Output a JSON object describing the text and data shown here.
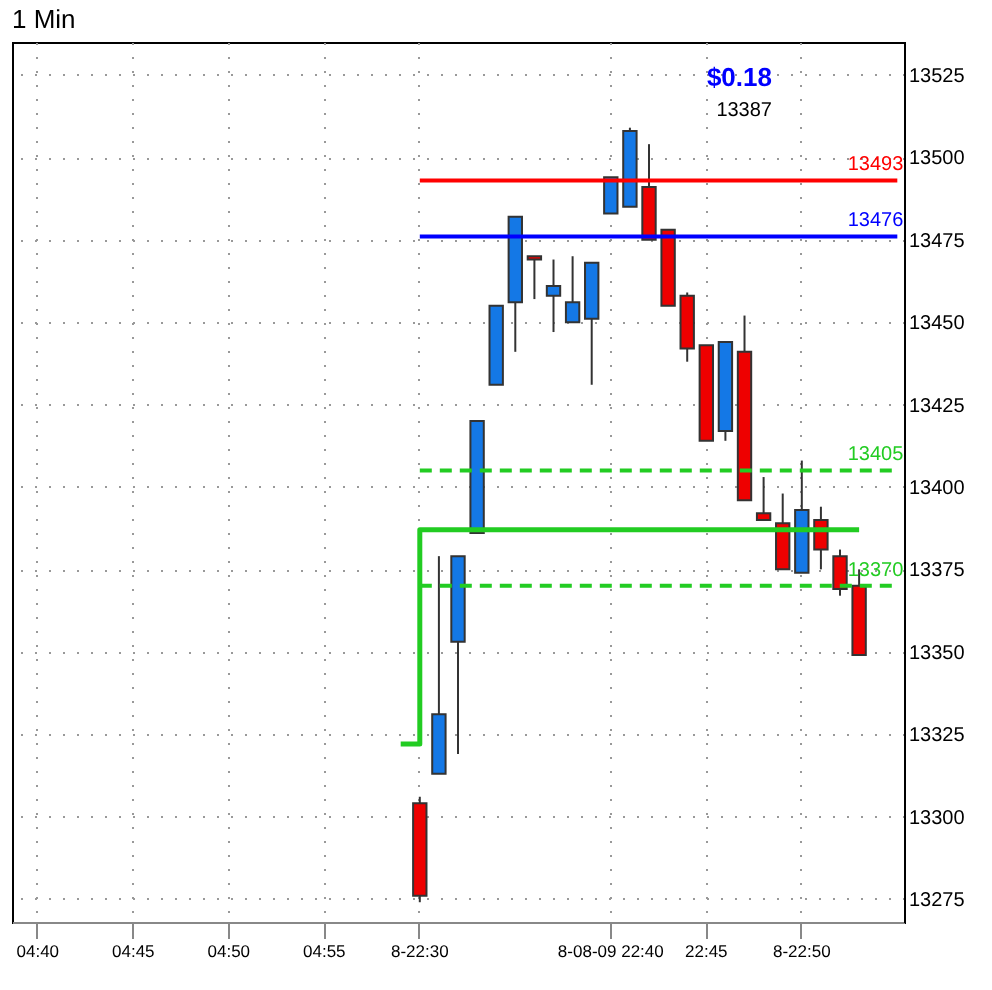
{
  "chart_data": {
    "type": "candlestick",
    "title": "1 Min",
    "categories": [
      null,
      "04:40",
      null,
      null,
      null,
      null,
      "04:45",
      null,
      null,
      null,
      null,
      "04:50",
      null,
      null,
      null,
      null,
      "04:55",
      null,
      null,
      null,
      null,
      "8-22:30",
      null,
      null,
      null,
      null,
      null,
      null,
      null,
      null,
      null,
      "8-08-09 22:40",
      null,
      null,
      null,
      null,
      "22:45",
      null,
      null,
      null,
      null,
      "8-22:50",
      null,
      null,
      null,
      null,
      null
    ],
    "ohlc": [
      null,
      null,
      null,
      null,
      null,
      null,
      null,
      null,
      null,
      null,
      null,
      null,
      null,
      null,
      null,
      null,
      null,
      null,
      null,
      null,
      null,
      [
        13304,
        13306,
        13274,
        13276
      ],
      [
        13313,
        13379,
        13313,
        13331
      ],
      [
        13353,
        13379,
        13319,
        13379
      ],
      [
        13386,
        13420,
        13386,
        13420
      ],
      [
        13431,
        13455,
        13431,
        13455
      ],
      [
        13456,
        13482,
        13441,
        13482
      ],
      [
        13470,
        13470,
        13457,
        13469
      ],
      [
        13458,
        13469,
        13447,
        13461
      ],
      [
        13450,
        13470,
        13450,
        13456
      ],
      [
        13451,
        13468,
        13431,
        13468
      ],
      [
        13483,
        13494,
        13483,
        13494
      ],
      [
        13485,
        13509,
        13485,
        13508
      ],
      [
        13491,
        13504,
        13475,
        13475
      ],
      [
        13478,
        13478,
        13455,
        13455
      ],
      [
        13458,
        13459,
        13438,
        13442
      ],
      [
        13443,
        13443,
        13414,
        13414
      ],
      [
        13417,
        13444,
        13414,
        13444
      ],
      [
        13441,
        13452,
        13396,
        13396
      ],
      [
        13392,
        13403,
        13390,
        13390
      ],
      [
        13389,
        13398,
        13375,
        13375
      ],
      [
        13374,
        13408,
        13374,
        13393
      ],
      [
        13390,
        13394,
        13375,
        13381
      ],
      [
        13379,
        13381,
        13367,
        13369
      ],
      [
        13370,
        13375,
        13349,
        13349
      ],
      null,
      null
    ],
    "colors": [
      null,
      null,
      null,
      null,
      null,
      null,
      null,
      null,
      null,
      null,
      null,
      null,
      null,
      null,
      null,
      null,
      null,
      null,
      null,
      null,
      null,
      "#ee0000",
      "#1478e6",
      "#1478e6",
      "#1478e6",
      "#1478e6",
      "#1478e6",
      "#ee0000",
      "#1478e6",
      "#1478e6",
      "#1478e6",
      "#1478e6",
      "#1478e6",
      "#ee0000",
      "#ee0000",
      "#ee0000",
      "#ee0000",
      "#1478e6",
      "#ee0000",
      "#ee0000",
      "#ee0000",
      "#1478e6",
      "#ee0000",
      "#ee0000",
      "#ee0000",
      null,
      null
    ],
    "series": [
      {
        "type": "step",
        "color": "#22cc22",
        "values": [
          null,
          null,
          null,
          null,
          null,
          null,
          null,
          null,
          null,
          null,
          null,
          null,
          null,
          null,
          null,
          null,
          null,
          null,
          null,
          null,
          13322,
          13387,
          13387,
          13387,
          13387,
          13387,
          13387,
          13387,
          13387,
          13387,
          13387,
          13387,
          13387,
          13387,
          13387,
          13387,
          13387,
          13387,
          13387,
          13387,
          13387,
          13387,
          13387,
          13387,
          13387,
          null,
          null
        ]
      }
    ],
    "ylim": [
      13268,
      13535
    ],
    "yticks": [
      13275,
      13300,
      13325,
      13350,
      13375,
      13400,
      13425,
      13450,
      13475,
      13500,
      13525
    ],
    "grid": true,
    "ref_lines": [
      {
        "axis": "y",
        "value": 13405,
        "label": "13405",
        "color": "#22cc22",
        "line_style": "dashed"
      },
      {
        "axis": "y",
        "value": 13370,
        "label": "13370",
        "color": "#22cc22",
        "line_style": "dashed"
      },
      {
        "axis": "y",
        "value": 13493,
        "label": "13493",
        "color": "#ff0000",
        "line_style": "solid"
      },
      {
        "axis": "y",
        "value": 13476,
        "label": "13476",
        "color": "#0000ff",
        "line_style": "solid"
      }
    ],
    "annotations": [
      "$0.18",
      "13387"
    ]
  }
}
